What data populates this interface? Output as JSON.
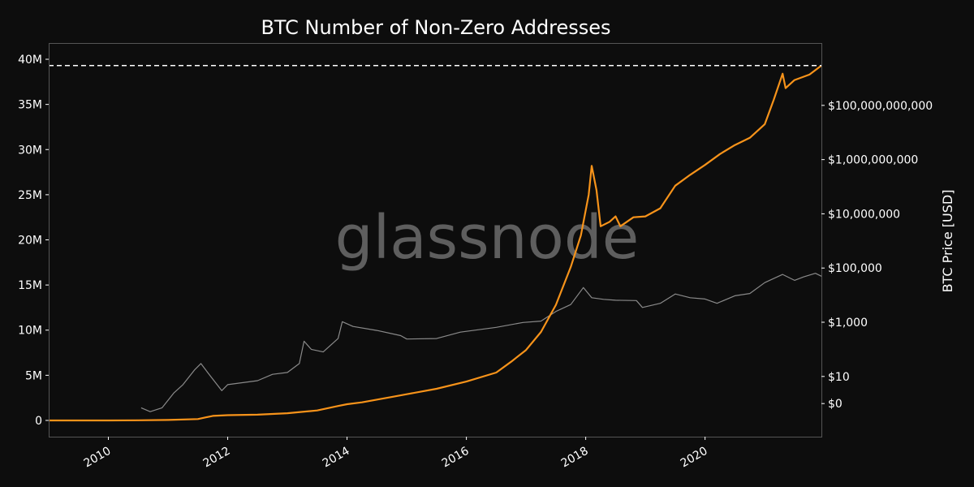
{
  "chart_data": {
    "type": "line",
    "title": "BTC Number of Non-Zero Addresses",
    "watermark": "glassnode",
    "xlabel": "",
    "ylabel": "",
    "ylabel_right": "BTC Price [USD]",
    "xlim": [
      2009.0,
      2021.95
    ],
    "ylim": [
      -1800000,
      41800000
    ],
    "y_ticks": [
      {
        "value": 0,
        "label": "0"
      },
      {
        "value": 5000000,
        "label": "5M"
      },
      {
        "value": 10000000,
        "label": "10M"
      },
      {
        "value": 15000000,
        "label": "15M"
      },
      {
        "value": 20000000,
        "label": "20M"
      },
      {
        "value": 25000000,
        "label": "25M"
      },
      {
        "value": 30000000,
        "label": "30M"
      },
      {
        "value": 35000000,
        "label": "35M"
      },
      {
        "value": 40000000,
        "label": "40M"
      }
    ],
    "x_ticks": [
      {
        "value": 2010,
        "label": "2010"
      },
      {
        "value": 2012,
        "label": "2012"
      },
      {
        "value": 2014,
        "label": "2014"
      },
      {
        "value": 2016,
        "label": "2016"
      },
      {
        "value": 2018,
        "label": "2018"
      },
      {
        "value": 2020,
        "label": "2020"
      }
    ],
    "y2_scale": "log",
    "y2lim": [
      0.06,
      20000000000000
    ],
    "y2_ticks": [
      {
        "value": 1,
        "label": "$0"
      },
      {
        "value": 10,
        "label": "$10"
      },
      {
        "value": 1000,
        "label": "$1,000"
      },
      {
        "value": 100000,
        "label": "$100,000"
      },
      {
        "value": 10000000,
        "label": "$10,000,000"
      },
      {
        "value": 1000000000,
        "label": "$1,000,000,000"
      },
      {
        "value": 100000000000,
        "label": "$100,000,000,000"
      }
    ],
    "reference_line": {
      "value": 39300000,
      "style": "dashed",
      "color": "#ffffff"
    },
    "grid": false,
    "colors": {
      "background": "#0d0d0d",
      "addresses": "#f7931a",
      "price": "#8a8a8a",
      "frame": "#555555"
    },
    "series": [
      {
        "axis": "left",
        "values": [
          [
            2009.0,
            0
          ],
          [
            2010.0,
            2000
          ],
          [
            2010.5,
            20000
          ],
          [
            2011.0,
            50000
          ],
          [
            2011.5,
            150000
          ],
          [
            2011.75,
            500000
          ],
          [
            2012.0,
            580000
          ],
          [
            2012.5,
            640000
          ],
          [
            2013.0,
            800000
          ],
          [
            2013.5,
            1100000
          ],
          [
            2013.85,
            1600000
          ],
          [
            2014.0,
            1800000
          ],
          [
            2014.25,
            2000000
          ],
          [
            2014.75,
            2600000
          ],
          [
            2015.0,
            2900000
          ],
          [
            2015.5,
            3500000
          ],
          [
            2016.0,
            4300000
          ],
          [
            2016.5,
            5300000
          ],
          [
            2016.75,
            6500000
          ],
          [
            2017.0,
            7800000
          ],
          [
            2017.25,
            9800000
          ],
          [
            2017.5,
            12800000
          ],
          [
            2017.75,
            17000000
          ],
          [
            2017.92,
            20500000
          ],
          [
            2018.05,
            25000000
          ],
          [
            2018.1,
            28200000
          ],
          [
            2018.18,
            25500000
          ],
          [
            2018.25,
            21500000
          ],
          [
            2018.4,
            22000000
          ],
          [
            2018.5,
            22600000
          ],
          [
            2018.58,
            21500000
          ],
          [
            2018.8,
            22500000
          ],
          [
            2019.0,
            22600000
          ],
          [
            2019.25,
            23500000
          ],
          [
            2019.5,
            26000000
          ],
          [
            2019.75,
            27200000
          ],
          [
            2020.0,
            28300000
          ],
          [
            2020.25,
            29500000
          ],
          [
            2020.5,
            30500000
          ],
          [
            2020.75,
            31300000
          ],
          [
            2021.0,
            32800000
          ],
          [
            2021.15,
            35500000
          ],
          [
            2021.3,
            38400000
          ],
          [
            2021.35,
            36800000
          ],
          [
            2021.5,
            37700000
          ],
          [
            2021.75,
            38300000
          ],
          [
            2021.95,
            39300000
          ]
        ]
      },
      {
        "axis": "right",
        "values": [
          [
            2010.55,
            0.7
          ],
          [
            2010.7,
            0.5
          ],
          [
            2010.9,
            0.7
          ],
          [
            2011.1,
            2.5
          ],
          [
            2011.25,
            5
          ],
          [
            2011.45,
            18
          ],
          [
            2011.55,
            30
          ],
          [
            2011.7,
            11
          ],
          [
            2011.9,
            3
          ],
          [
            2012.0,
            5
          ],
          [
            2012.5,
            7
          ],
          [
            2012.75,
            12
          ],
          [
            2013.0,
            14
          ],
          [
            2013.2,
            30
          ],
          [
            2013.28,
            200
          ],
          [
            2013.4,
            100
          ],
          [
            2013.6,
            80
          ],
          [
            2013.85,
            250
          ],
          [
            2013.92,
            1050
          ],
          [
            2014.1,
            700
          ],
          [
            2014.5,
            500
          ],
          [
            2014.9,
            320
          ],
          [
            2015.0,
            240
          ],
          [
            2015.5,
            250
          ],
          [
            2015.9,
            430
          ],
          [
            2016.5,
            650
          ],
          [
            2016.95,
            980
          ],
          [
            2017.25,
            1100
          ],
          [
            2017.5,
            2500
          ],
          [
            2017.75,
            4500
          ],
          [
            2017.96,
            19000
          ],
          [
            2018.1,
            8000
          ],
          [
            2018.3,
            7000
          ],
          [
            2018.5,
            6500
          ],
          [
            2018.85,
            6300
          ],
          [
            2018.95,
            3500
          ],
          [
            2019.25,
            5000
          ],
          [
            2019.5,
            11000
          ],
          [
            2019.75,
            8000
          ],
          [
            2020.0,
            7200
          ],
          [
            2020.2,
            5000
          ],
          [
            2020.5,
            9500
          ],
          [
            2020.75,
            11500
          ],
          [
            2021.0,
            29000
          ],
          [
            2021.3,
            58000
          ],
          [
            2021.5,
            35000
          ],
          [
            2021.65,
            47000
          ],
          [
            2021.85,
            64000
          ],
          [
            2021.95,
            50000
          ]
        ]
      }
    ]
  }
}
